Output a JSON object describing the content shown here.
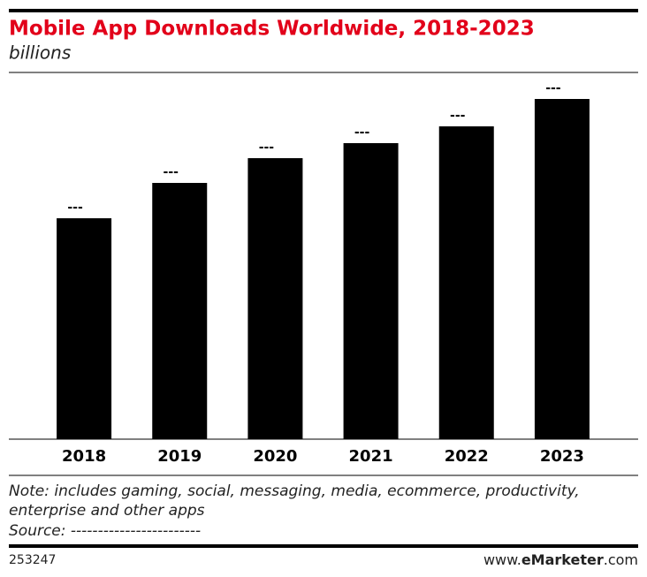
{
  "chart_data": {
    "type": "bar",
    "title": "Mobile App Downloads Worldwide, 2018-2023",
    "subtitle": "billions",
    "categories": [
      "2018",
      "2019",
      "2020",
      "2021",
      "2022",
      "2023"
    ],
    "values": [
      125,
      145,
      159,
      167.5,
      177,
      192.5
    ],
    "value_labels": [
      "---",
      "---",
      "---",
      "---",
      "---",
      "---"
    ],
    "color": "#000000",
    "ylim": [
      0,
      200
    ],
    "note": [
      "Note: includes gaming, social, messaging, media, ecommerce, productivity,",
      "enterprise and other apps"
    ],
    "source": "Source: ------------------------",
    "footer_id": "253247",
    "footer_site": [
      "www.",
      "eMarketer",
      ".com"
    ]
  }
}
